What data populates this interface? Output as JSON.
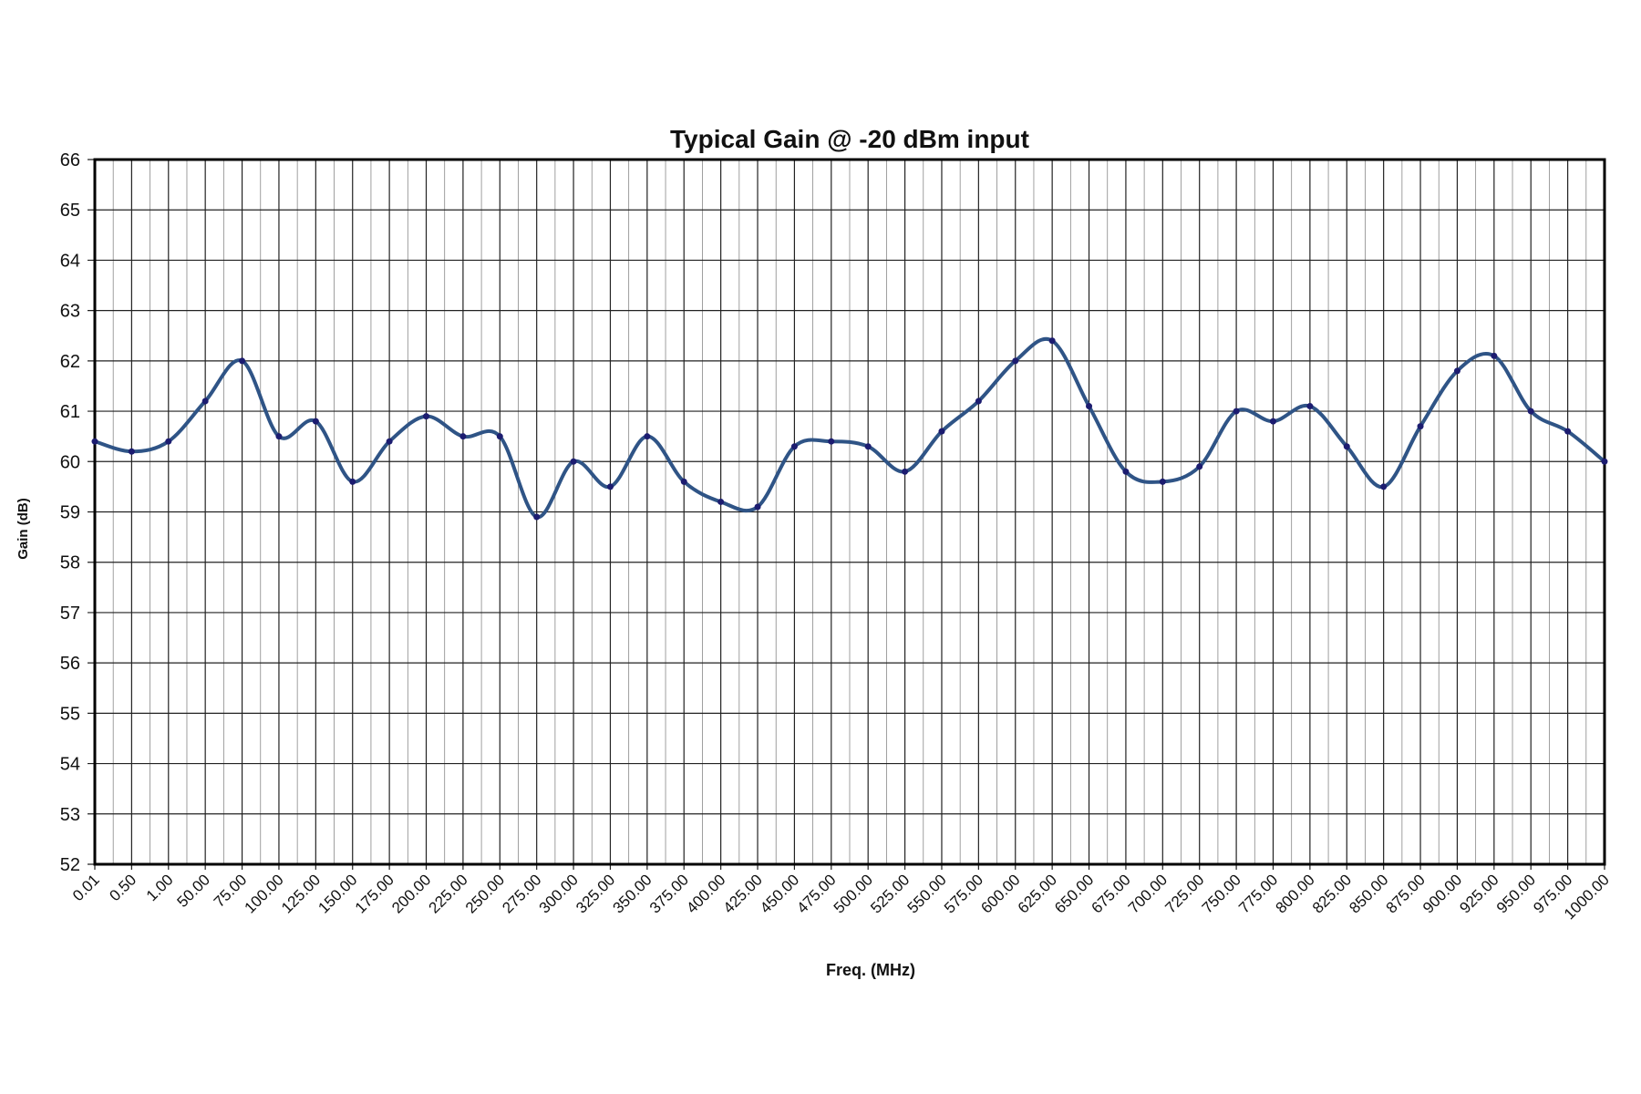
{
  "chart_data": {
    "type": "line",
    "title": "Typical Gain @ -20 dBm input",
    "x_label": "Freq. (MHz)",
    "y_label": "Gain (dB)",
    "categories": [
      "0.01",
      "0.50",
      "1.00",
      "50.00",
      "75.00",
      "100.00",
      "125.00",
      "150.00",
      "175.00",
      "200.00",
      "225.00",
      "250.00",
      "275.00",
      "300.00",
      "325.00",
      "350.00",
      "375.00",
      "400.00",
      "425.00",
      "450.00",
      "475.00",
      "500.00",
      "525.00",
      "550.00",
      "575.00",
      "600.00",
      "625.00",
      "650.00",
      "675.00",
      "700.00",
      "725.00",
      "750.00",
      "775.00",
      "800.00",
      "825.00",
      "850.00",
      "875.00",
      "900.00",
      "925.00",
      "950.00",
      "975.00",
      "1000.00"
    ],
    "values": [
      60.4,
      60.2,
      60.4,
      61.2,
      62.0,
      60.5,
      60.8,
      59.6,
      60.4,
      60.9,
      60.5,
      60.5,
      58.9,
      60.0,
      59.5,
      60.5,
      59.6,
      59.2,
      59.1,
      60.3,
      60.4,
      60.3,
      59.8,
      60.6,
      61.2,
      62.0,
      62.4,
      61.1,
      59.8,
      59.6,
      59.9,
      61.0,
      60.8,
      61.1,
      60.3,
      59.5,
      60.7,
      61.8,
      62.1,
      61.0,
      60.6,
      60.0
    ],
    "color": "#2f5486",
    "marker_color": "#1c1c70",
    "ylim": [
      52,
      66
    ],
    "yticks": [
      52,
      53,
      54,
      55,
      56,
      57,
      58,
      59,
      60,
      61,
      62,
      63,
      64,
      65,
      66
    ],
    "grid": true,
    "smooth": true
  }
}
